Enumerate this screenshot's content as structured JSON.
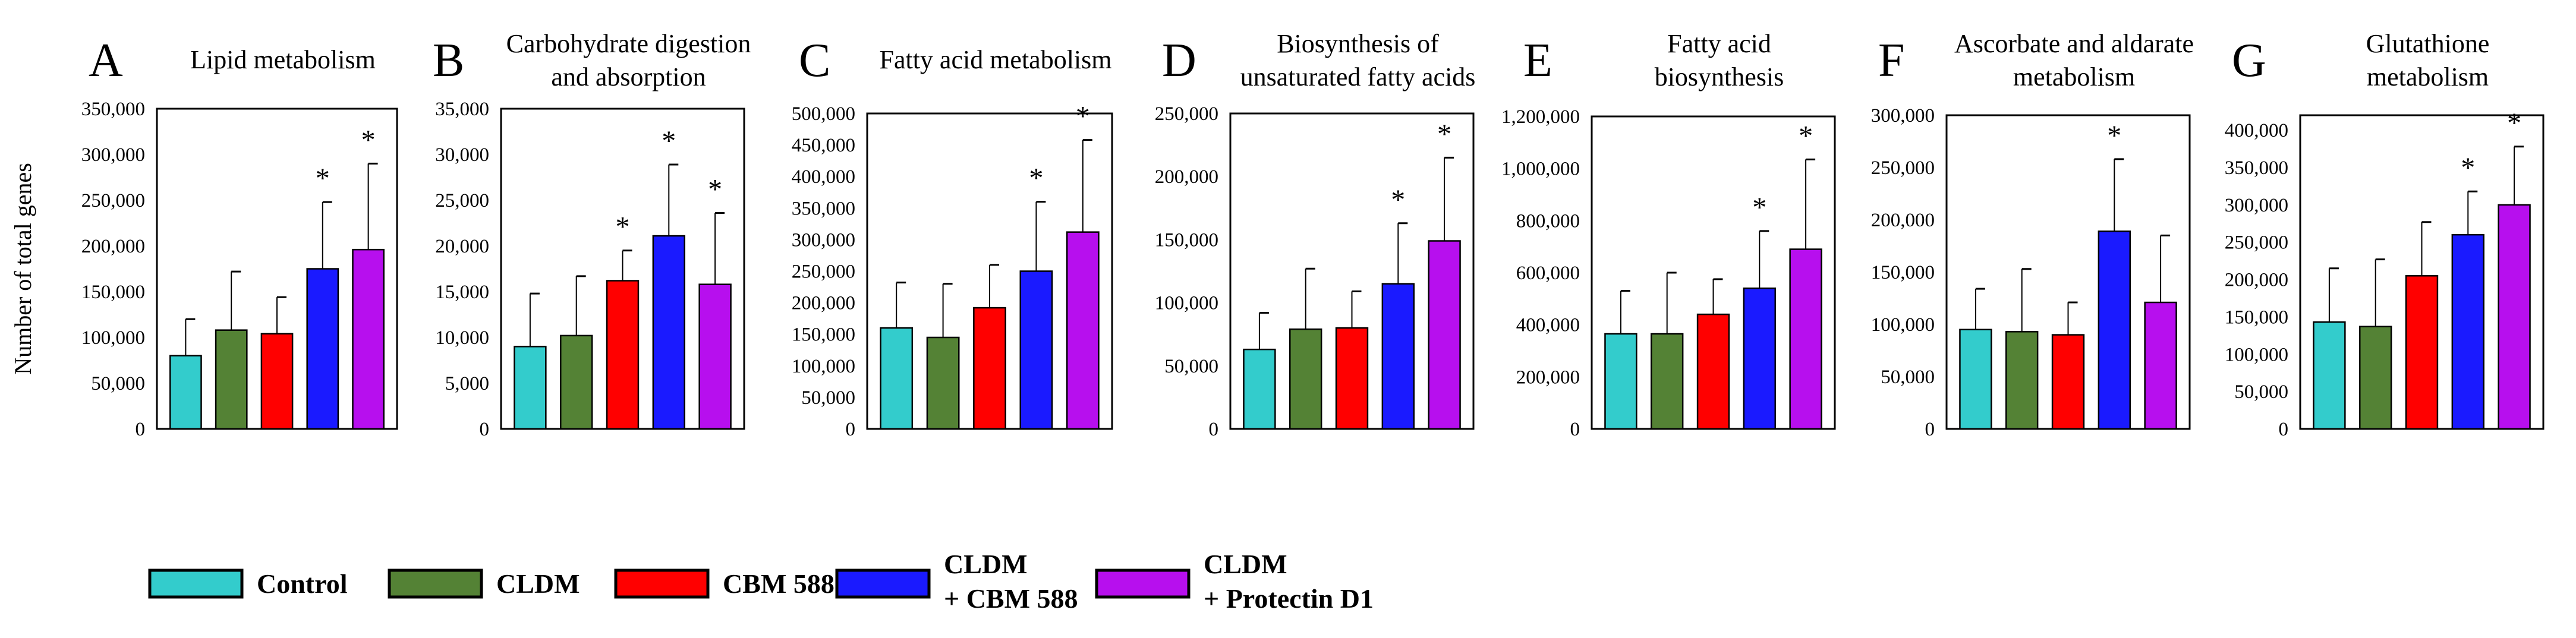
{
  "chart_data": [
    {
      "type": "bar",
      "panel": "A",
      "title": [
        "Lipid metabolism"
      ],
      "ylabel": "Number of total genes",
      "ylim": [
        0,
        350000
      ],
      "yticks": [
        0,
        50000,
        100000,
        150000,
        200000,
        250000,
        300000,
        350000
      ],
      "values": [
        80000,
        108000,
        104000,
        175000,
        196000
      ],
      "errors": [
        40000,
        64000,
        40000,
        73000,
        94000
      ],
      "significant": [
        false,
        false,
        false,
        true,
        true
      ]
    },
    {
      "type": "bar",
      "panel": "B",
      "title": [
        "Carbohydrate digestion",
        "and absorption"
      ],
      "ylabel": "",
      "ylim": [
        0,
        35000
      ],
      "yticks": [
        0,
        5000,
        10000,
        15000,
        20000,
        25000,
        30000,
        35000
      ],
      "values": [
        9000,
        10200,
        16200,
        21100,
        15800
      ],
      "errors": [
        5800,
        6500,
        3300,
        7800,
        7800
      ],
      "significant": [
        false,
        false,
        true,
        true,
        true
      ]
    },
    {
      "type": "bar",
      "panel": "C",
      "title": [
        "Fatty acid metabolism"
      ],
      "ylabel": "",
      "ylim": [
        0,
        500000
      ],
      "yticks": [
        0,
        50000,
        100000,
        150000,
        200000,
        250000,
        300000,
        350000,
        400000,
        450000,
        500000
      ],
      "values": [
        160000,
        145000,
        192000,
        250000,
        312000
      ],
      "errors": [
        72000,
        85000,
        68000,
        110000,
        146000
      ],
      "significant": [
        false,
        false,
        false,
        true,
        true
      ]
    },
    {
      "type": "bar",
      "panel": "D",
      "title": [
        "Biosynthesis of",
        "unsaturated fatty acids"
      ],
      "ylabel": "",
      "ylim": [
        0,
        250000
      ],
      "yticks": [
        0,
        50000,
        100000,
        150000,
        200000,
        250000
      ],
      "values": [
        63000,
        79000,
        80000,
        115000,
        149000
      ],
      "errors": [
        29000,
        48000,
        29000,
        48000,
        66000
      ],
      "significant": [
        false,
        false,
        false,
        true,
        true
      ]
    },
    {
      "type": "bar",
      "panel": "E",
      "title": [
        "Fatty acid",
        "biosynthesis"
      ],
      "ylabel": "",
      "ylim": [
        0,
        1200000
      ],
      "yticks": [
        0,
        200000,
        400000,
        600000,
        800000,
        1000000,
        1200000
      ],
      "values": [
        365000,
        365000,
        440000,
        540000,
        690000
      ],
      "errors": [
        165000,
        235000,
        135000,
        220000,
        345000
      ],
      "significant": [
        false,
        false,
        false,
        true,
        true
      ]
    },
    {
      "type": "bar",
      "panel": "F",
      "title": [
        "Ascorbate and aldarate",
        "metabolism"
      ],
      "ylabel": "",
      "ylim": [
        0,
        300000
      ],
      "yticks": [
        0,
        50000,
        100000,
        150000,
        200000,
        250000,
        300000
      ],
      "values": [
        95000,
        93000,
        90000,
        189000,
        121000
      ],
      "errors": [
        39000,
        60000,
        31000,
        69000,
        64000
      ],
      "significant": [
        false,
        false,
        false,
        true,
        false
      ]
    },
    {
      "type": "bar",
      "panel": "G",
      "title": [
        "Glutathione",
        "metabolism"
      ],
      "ylabel": "",
      "ylim": [
        0,
        420000
      ],
      "yticks": [
        0,
        50000,
        100000,
        150000,
        200000,
        250000,
        300000,
        350000,
        400000
      ],
      "values": [
        143000,
        137000,
        205000,
        260000,
        300000
      ],
      "errors": [
        72000,
        90000,
        72000,
        58000,
        78000
      ],
      "significant": [
        false,
        false,
        false,
        true,
        true
      ]
    }
  ],
  "legend": {
    "placement": "bottom-left",
    "items": [
      {
        "lines": [
          "Control"
        ],
        "color": "#33CCCC"
      },
      {
        "lines": [
          "CLDM"
        ],
        "color": "#548235"
      },
      {
        "lines": [
          "CBM 588"
        ],
        "color": "#FF0000"
      },
      {
        "lines": [
          "CLDM",
          "+ CBM 588"
        ],
        "color": "#1A1AFF"
      },
      {
        "lines": [
          "CLDM",
          "+ Protectin D1"
        ],
        "color": "#B70FEE"
      }
    ]
  },
  "significance_marker": "*"
}
